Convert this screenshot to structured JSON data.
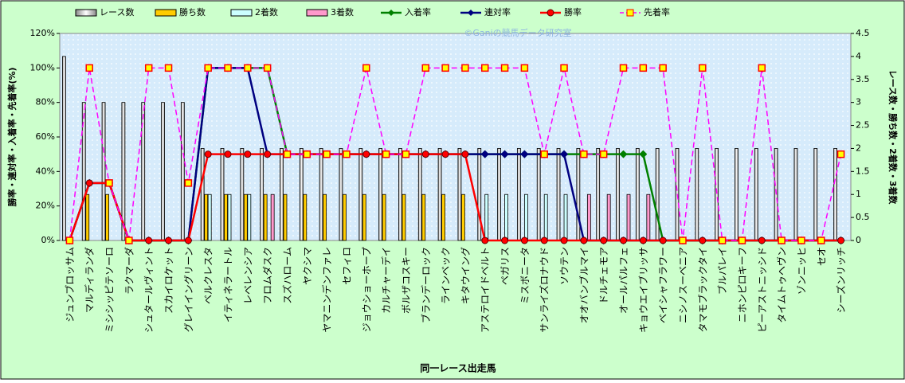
{
  "chart_data": {
    "type": "combo",
    "watermark": "©Ganiの競馬データ研究室",
    "xlabel": "同一レース出走馬",
    "ylabel": "勝率・連対率・入着率・先着率(%)",
    "y2label": "レース数・勝ち数・2着数・3着数",
    "categories": [
      "ジュンブロッサム",
      "マルディランダ",
      "ミシシッピテソーロ",
      "ラクマーダ",
      "シュタールヴィント",
      "スカイロケット",
      "グレイイングリーン",
      "ベルクレスタ",
      "イティネラートル",
      "レベレンシア",
      "フロムダスク",
      "スズハローム",
      "ヤクシマ",
      "ヤマニンデンファレ",
      "セフィロ",
      "ジョウショーホープ",
      "カルチャーデイ",
      "ボルザコスキー",
      "ブランデーロック",
      "ラインベック",
      "キタウイング",
      "アステロイドベルト",
      "ペガリス",
      "ミスボニータ",
      "サンライズロナウド",
      "ソウテン",
      "オオバンブルマイ",
      "ドルチェモア",
      "オールパルフェ",
      "キョウエイブリッサ",
      "ベイシャフラワー",
      "ニシノスーベニア",
      "タマモブラックタイ",
      "ブルパレイ",
      "ニホンピロキーフ",
      "ピーアストニッシド",
      "タイムトゥヘヴン",
      "ゾンニッヒ",
      "セオ",
      "シーズンリッチ"
    ],
    "ylim": [
      0,
      120
    ],
    "yticks": [
      {
        "value": 0,
        "label": "0%"
      },
      {
        "value": 20,
        "label": "20%"
      },
      {
        "value": 40,
        "label": "40%"
      },
      {
        "value": 60,
        "label": "60%"
      },
      {
        "value": 80,
        "label": "80%"
      },
      {
        "value": 100,
        "label": "100%"
      },
      {
        "value": 120,
        "label": "120%"
      }
    ],
    "y2lim": [
      0,
      4.5
    ],
    "y2ticks": [
      0,
      0.5,
      1,
      1.5,
      2,
      2.5,
      3,
      3.5,
      4,
      4.5
    ],
    "series": [
      {
        "name": "レース数",
        "kind": "bar",
        "axis": "y2",
        "color": "#ffffff",
        "values": [
          4,
          3,
          3,
          3,
          3,
          3,
          3,
          2,
          2,
          2,
          2,
          2,
          2,
          2,
          2,
          2,
          2,
          2,
          2,
          2,
          2,
          2,
          2,
          2,
          2,
          2,
          2,
          2,
          2,
          2,
          2,
          2,
          2,
          2,
          2,
          2,
          2,
          2,
          2,
          2
        ]
      },
      {
        "name": "勝ち数",
        "kind": "bar",
        "axis": "y2",
        "color": "#ffcc00",
        "values": [
          0,
          1,
          1,
          0,
          0,
          0,
          0,
          1,
          1,
          1,
          1,
          1,
          1,
          1,
          1,
          1,
          1,
          1,
          1,
          1,
          1,
          0,
          0,
          0,
          0,
          0,
          0,
          0,
          0,
          0,
          0,
          0,
          0,
          0,
          0,
          0,
          0,
          0,
          0,
          0
        ]
      },
      {
        "name": "2着数",
        "kind": "bar",
        "axis": "y2",
        "color": "#ccffff",
        "values": [
          0,
          0,
          0,
          0,
          0,
          0,
          0,
          1,
          1,
          1,
          0,
          0,
          0,
          0,
          0,
          0,
          0,
          0,
          0,
          0,
          0,
          1,
          1,
          1,
          1,
          1,
          0,
          0,
          0,
          0,
          0,
          0,
          0,
          0,
          0,
          0,
          0,
          0,
          0,
          0
        ]
      },
      {
        "name": "3着数",
        "kind": "bar",
        "axis": "y2",
        "color": "#ff99cc",
        "values": [
          0,
          0,
          0,
          0,
          0,
          0,
          0,
          0,
          0,
          0,
          1,
          0,
          0,
          0,
          0,
          0,
          0,
          0,
          0,
          0,
          0,
          0,
          0,
          0,
          0,
          0,
          1,
          1,
          1,
          1,
          0,
          0,
          0,
          0,
          0,
          0,
          0,
          0,
          0,
          0
        ]
      },
      {
        "name": "入着率",
        "kind": "line",
        "marker": "diamond",
        "color": "#008000",
        "values": [
          0,
          33.3,
          33.3,
          0,
          0,
          0,
          0,
          100,
          100,
          100,
          100,
          50,
          50,
          50,
          50,
          50,
          50,
          50,
          50,
          50,
          50,
          50,
          50,
          50,
          50,
          50,
          50,
          50,
          50,
          50,
          0,
          0,
          0,
          0,
          0,
          0,
          0,
          0,
          0,
          0
        ]
      },
      {
        "name": "連対率",
        "kind": "line",
        "marker": "diamond",
        "color": "#000080",
        "values": [
          0,
          33.3,
          33.3,
          0,
          0,
          0,
          0,
          100,
          100,
          100,
          50,
          50,
          50,
          50,
          50,
          50,
          50,
          50,
          50,
          50,
          50,
          50,
          50,
          50,
          50,
          50,
          0,
          0,
          0,
          0,
          0,
          0,
          0,
          0,
          0,
          0,
          0,
          0,
          0,
          0
        ]
      },
      {
        "name": "勝率",
        "kind": "line",
        "marker": "circle",
        "color": "#ff0000",
        "values": [
          0,
          33.3,
          33.3,
          0,
          0,
          0,
          0,
          50,
          50,
          50,
          50,
          50,
          50,
          50,
          50,
          50,
          50,
          50,
          50,
          50,
          50,
          0,
          0,
          0,
          0,
          0,
          0,
          0,
          0,
          0,
          0,
          0,
          0,
          0,
          0,
          0,
          0,
          0,
          0,
          0
        ]
      },
      {
        "name": "先着率",
        "kind": "line",
        "marker": "square",
        "dashed": true,
        "color": "#ff00ff",
        "values": [
          0,
          100,
          33.3,
          0,
          100,
          100,
          33.3,
          100,
          100,
          100,
          100,
          50,
          50,
          50,
          50,
          100,
          50,
          50,
          100,
          100,
          100,
          100,
          100,
          100,
          50,
          100,
          50,
          50,
          100,
          100,
          100,
          0,
          100,
          0,
          0,
          100,
          0,
          0,
          0,
          50
        ]
      }
    ]
  }
}
